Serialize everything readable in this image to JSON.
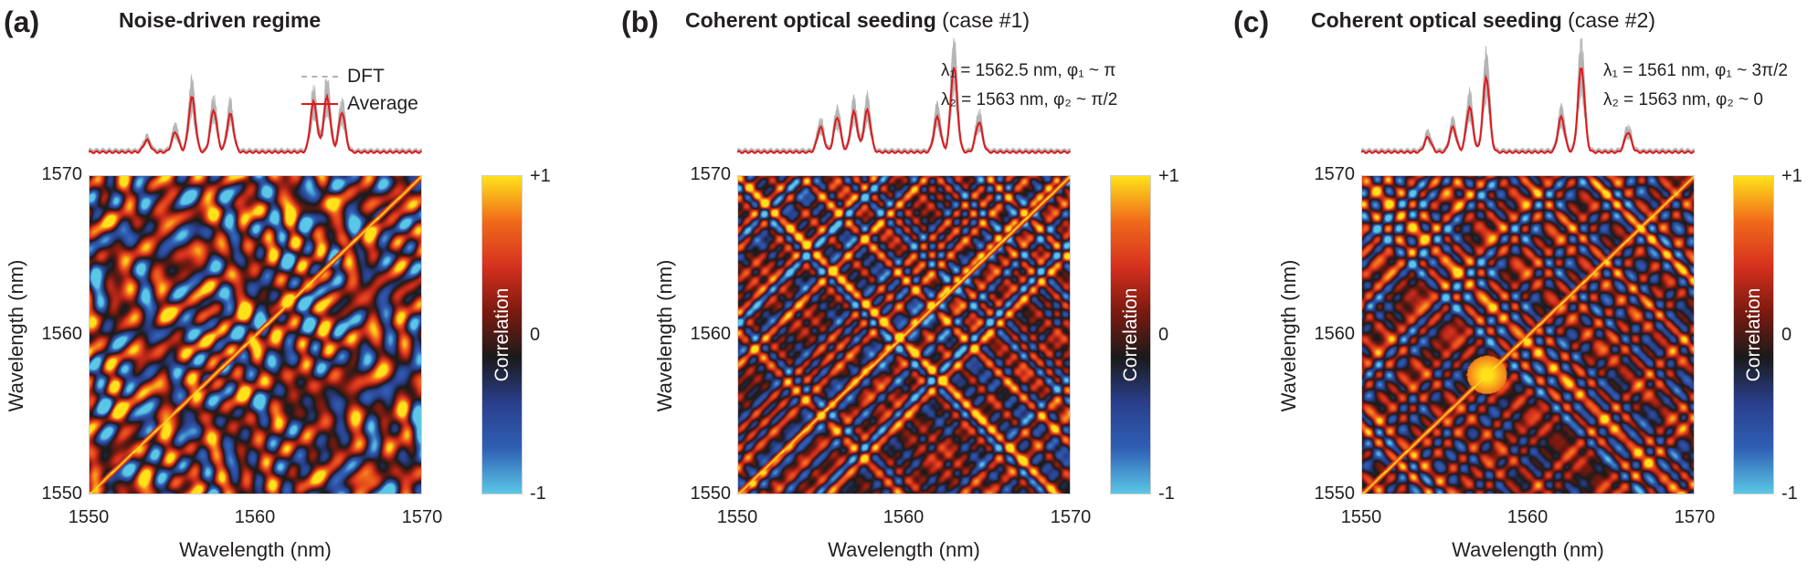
{
  "figure": {
    "colorbar": {
      "max_label": "+1",
      "mid_label": "0",
      "min_label": "-1",
      "title": "Correlation",
      "colors": [
        "#5bc7e6",
        "#2f5fb4",
        "#2a3f8c",
        "#1a1a1a",
        "#7a1a10",
        "#d6301e",
        "#f06a1a",
        "#ffe21a"
      ]
    },
    "legend": {
      "dft": "DFT",
      "average": "Average",
      "dft_color": "#b3b3b3",
      "average_color": "#e0191c"
    }
  },
  "panels": [
    {
      "letter": "(a)",
      "title": "Noise-driven regime",
      "subtitle": "",
      "annotations": [],
      "seed": 7,
      "hotspot": null
    },
    {
      "letter": "(b)",
      "title": "Coherent optical seeding",
      "subtitle": " (case #1)",
      "annotations": [
        "λ₁ = 1562.5 nm, φ₁ ~ π",
        "λ₂ = 1563 nm, φ₂ ~ π/2"
      ],
      "seed": 19,
      "hotspot": null
    },
    {
      "letter": "(c)",
      "title": "Coherent optical seeding",
      "subtitle": " (case #2)",
      "annotations": [
        "λ₁ = 1561 nm, φ₁ ~ 3π/2",
        "λ₂ = 1563 nm, φ₂ ~ 0"
      ],
      "seed": 31,
      "hotspot": [
        1557.5,
        1557.5
      ]
    }
  ],
  "chart_data": [
    {
      "type": "heatmap",
      "panel": "a",
      "title": "Noise-driven regime",
      "xlabel": "Wavelength (nm)",
      "ylabel": "Wavelength (nm)",
      "xlim": [
        1550,
        1570
      ],
      "ylim": [
        1550,
        1570
      ],
      "xticks": [
        "1550",
        "1560",
        "1570"
      ],
      "yticks": [
        "1550",
        "1560",
        "1570"
      ],
      "zlim": [
        -1,
        1
      ],
      "diagonal": 1,
      "spectrum": {
        "series": [
          "DFT",
          "Average"
        ],
        "peaks_nm": [
          1553.5,
          1555.2,
          1556.2,
          1557.5,
          1558.5,
          1563.5,
          1564.3,
          1565.2
        ],
        "peaks_amp": [
          0.12,
          0.2,
          0.55,
          0.42,
          0.38,
          0.5,
          0.55,
          0.4
        ]
      }
    },
    {
      "type": "heatmap",
      "panel": "b",
      "title": "Coherent optical seeding (case #1)",
      "xlabel": "Wavelength (nm)",
      "ylabel": "Wavelength (nm)",
      "xlim": [
        1550,
        1570
      ],
      "ylim": [
        1550,
        1570
      ],
      "xticks": [
        "1550",
        "1560",
        "1570"
      ],
      "yticks": [
        "1550",
        "1560",
        "1570"
      ],
      "zlim": [
        -1,
        1
      ],
      "diagonal": 1,
      "spectrum": {
        "series": [
          "DFT",
          "Average"
        ],
        "peaks_nm": [
          1555.0,
          1556.0,
          1557.0,
          1557.8,
          1562.0,
          1563.0,
          1564.5
        ],
        "peaks_amp": [
          0.25,
          0.35,
          0.4,
          0.42,
          0.35,
          0.85,
          0.3
        ]
      }
    },
    {
      "type": "heatmap",
      "panel": "c",
      "title": "Coherent optical seeding (case #2)",
      "xlabel": "Wavelength (nm)",
      "ylabel": "Wavelength (nm)",
      "xlim": [
        1550,
        1570
      ],
      "ylim": [
        1550,
        1570
      ],
      "xticks": [
        "1550",
        "1560",
        "1570"
      ],
      "yticks": [
        "1550",
        "1560",
        "1570"
      ],
      "zlim": [
        -1,
        1
      ],
      "diagonal": 1,
      "spectrum": {
        "series": [
          "DFT",
          "Average"
        ],
        "peaks_nm": [
          1554.0,
          1555.5,
          1556.5,
          1557.5,
          1562.0,
          1563.2,
          1566.0
        ],
        "peaks_amp": [
          0.15,
          0.25,
          0.45,
          0.75,
          0.35,
          0.85,
          0.2
        ]
      }
    }
  ]
}
